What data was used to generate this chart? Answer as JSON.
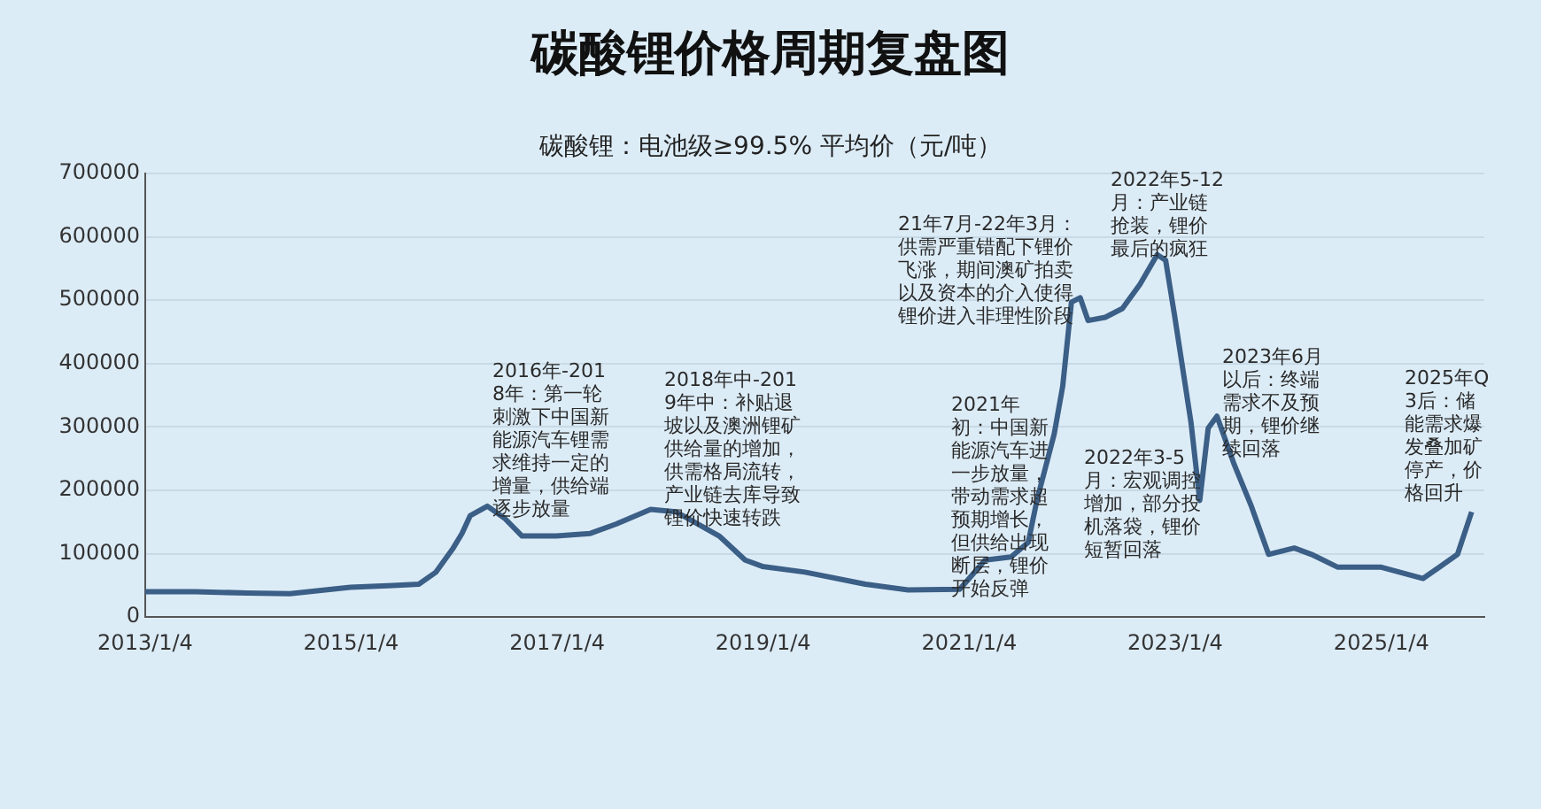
{
  "chart_data": {
    "type": "line",
    "title": "碳酸锂价格周期复盘图",
    "subtitle": "碳酸锂：电池级≥99.5% 平均价（元/吨）",
    "x": [
      "2013-01-04",
      "2013-07-01",
      "2014-01-01",
      "2014-06-01",
      "2015-01-01",
      "2015-06-01",
      "2015-09-01",
      "2015-11-01",
      "2016-01-01",
      "2016-02-01",
      "2016-03-01",
      "2016-05-01",
      "2016-07-01",
      "2016-09-01",
      "2017-01-01",
      "2017-05-01",
      "2017-08-01",
      "2017-12-01",
      "2018-03-01",
      "2018-05-01",
      "2018-08-01",
      "2018-11-01",
      "2019-01-01",
      "2019-06-01",
      "2020-01-01",
      "2020-06-01",
      "2020-12-01",
      "2021-03-01",
      "2021-06-01",
      "2021-08-01",
      "2021-09-01",
      "2021-11-01",
      "2021-12-01",
      "2022-01-01",
      "2022-02-01",
      "2022-03-01",
      "2022-05-01",
      "2022-07-01",
      "2022-09-01",
      "2022-11-01",
      "2022-12-01",
      "2023-01-01",
      "2023-03-01",
      "2023-04-01",
      "2023-05-01",
      "2023-06-01",
      "2023-08-01",
      "2023-10-01",
      "2023-12-01",
      "2024-03-01",
      "2024-05-01",
      "2024-08-01",
      "2025-01-01",
      "2025-06-01",
      "2025-08-01",
      "2025-10-01",
      "2025-11-20"
    ],
    "series": [
      {
        "color": "#3b5f86",
        "values": [
          40000,
          40000,
          38000,
          37000,
          47000,
          50000,
          52000,
          71000,
          109000,
          132000,
          160000,
          175000,
          156000,
          128000,
          128000,
          132000,
          147000,
          170000,
          166000,
          151000,
          128000,
          90000,
          80000,
          71000,
          52000,
          43000,
          44000,
          90000,
          95000,
          118000,
          185000,
          289000,
          364000,
          497000,
          504000,
          468000,
          473000,
          487000,
          525000,
          572000,
          563000,
          478000,
          307000,
          184000,
          298000,
          317000,
          241000,
          175000,
          99000,
          109000,
          99000,
          79000,
          79000,
          61000,
          80000,
          99000,
          166000
        ]
      }
    ],
    "xlim": [
      "2013-01-04",
      "2026-01-04"
    ],
    "xticks": [
      {
        "value": "2013-01-04",
        "label": "2013/1/4"
      },
      {
        "value": "2015-01-04",
        "label": "2015/1/4"
      },
      {
        "value": "2017-01-04",
        "label": "2017/1/4"
      },
      {
        "value": "2019-01-04",
        "label": "2019/1/4"
      },
      {
        "value": "2021-01-04",
        "label": "2021/1/4"
      },
      {
        "value": "2023-01-04",
        "label": "2023/1/4"
      },
      {
        "value": "2025-01-04",
        "label": "2025/1/4"
      }
    ],
    "ylim": [
      0,
      700000
    ],
    "yticks": [
      0,
      100000,
      200000,
      300000,
      400000,
      500000,
      600000,
      700000
    ],
    "grid": "y",
    "legend": false,
    "marker": "none",
    "line_style": "solid",
    "annotations": [
      "2016年-2018年：第一轮刺激下中国新能源汽车锂需求维持一定的增量，供给端逐步放量",
      "2018年中-2019年中：补贴退坡以及澳洲锂矿供给量的增加，供需格局流转，产业链去库导致锂价快速转跌",
      "21年7月-22年3月：供需严重错配下锂价飞涨，期间澳矿拍卖以及资本的介入使得锂价进入非理性阶段",
      "2022年5-12月：产业链抢装，锂价最后的疯狂",
      "2021年初：中国新能源汽车进一步放量，带动需求超预期增长，但供给出现断层，锂价开始反弹",
      "2022年3-5月：宏观调控增加，部分投机落袋，锂价短暂回落",
      "2023年6月以后：终端需求不及预期，锂价继续回落",
      "2025年Q3后：储能需求爆发叠加矿停产，价格回升"
    ]
  }
}
